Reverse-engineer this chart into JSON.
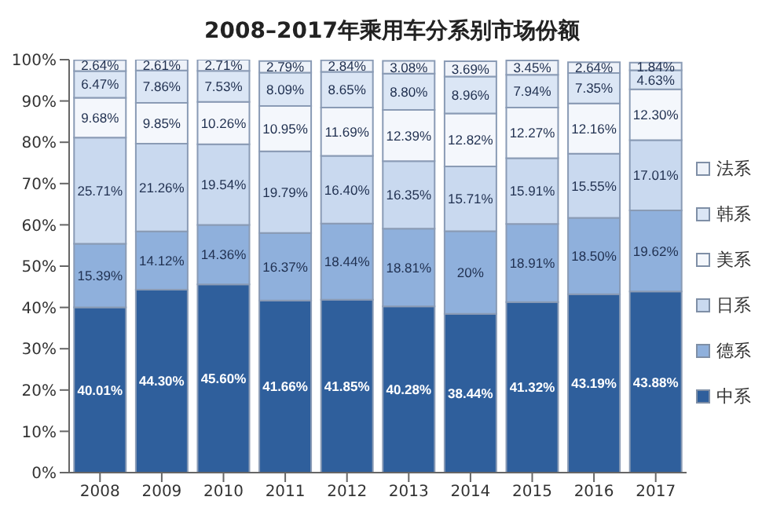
{
  "chart_data": {
    "type": "bar",
    "title": "2008–2017年乘用车分系别市场份额",
    "stacked": true,
    "categories": [
      "2008",
      "2009",
      "2010",
      "2011",
      "2012",
      "2013",
      "2014",
      "2015",
      "2016",
      "2017"
    ],
    "series": [
      {
        "name": "中系",
        "color": "#2f5f9c",
        "values": [
          40.01,
          44.3,
          45.6,
          41.66,
          41.85,
          40.28,
          38.44,
          41.32,
          43.19,
          43.88
        ],
        "value_labels": [
          "40.01%",
          "44.30%",
          "45.60%",
          "41.66%",
          "41.85%",
          "40.28%",
          "38.44%",
          "41.32%",
          "43.19%",
          "43.88%"
        ]
      },
      {
        "name": "德系",
        "color": "#8fb0dc",
        "values": [
          15.39,
          14.12,
          14.36,
          16.37,
          18.44,
          18.81,
          20,
          18.91,
          18.5,
          19.62
        ],
        "value_labels": [
          "15.39%",
          "14.12%",
          "14.36%",
          "16.37%",
          "18.44%",
          "18.81%",
          "20%",
          "18.91%",
          "18.50%",
          "19.62%"
        ]
      },
      {
        "name": "日系",
        "color": "#c9d9ef",
        "values": [
          25.71,
          21.26,
          19.54,
          19.79,
          16.4,
          16.35,
          15.71,
          15.91,
          15.55,
          17.01
        ],
        "value_labels": [
          "25.71%",
          "21.26%",
          "19.54%",
          "19.79%",
          "16.40%",
          "16.35%",
          "15.71%",
          "15.91%",
          "15.55%",
          "17.01%"
        ]
      },
      {
        "name": "美系",
        "color": "#f4f7fc",
        "values": [
          9.68,
          9.85,
          10.26,
          10.95,
          11.69,
          12.39,
          12.82,
          12.27,
          12.16,
          12.3
        ],
        "value_labels": [
          "9.68%",
          "9.85%",
          "10.26%",
          "10.95%",
          "11.69%",
          "12.39%",
          "12.82%",
          "12.27%",
          "12.16%",
          "12.30%"
        ]
      },
      {
        "name": "韩系",
        "color": "#dbe6f5",
        "values": [
          6.47,
          7.86,
          7.53,
          8.09,
          8.65,
          8.8,
          8.96,
          7.94,
          7.35,
          4.63
        ],
        "value_labels": [
          "6.47%",
          "7.86%",
          "7.53%",
          "8.09%",
          "8.65%",
          "8.80%",
          "8.96%",
          "7.94%",
          "7.35%",
          "4.63%"
        ]
      },
      {
        "name": "法系",
        "color": "#eef2f9",
        "values": [
          2.64,
          2.61,
          2.71,
          2.79,
          2.84,
          3.08,
          3.69,
          3.45,
          2.64,
          1.84
        ],
        "value_labels": [
          "2.64%",
          "2.61%",
          "2.71%",
          "2.79%",
          "2.84%",
          "3.08%",
          "3.69%",
          "3.45%",
          "2.64%",
          "1.84%"
        ]
      }
    ],
    "ylim": [
      0,
      100
    ],
    "yticks": [
      {
        "value": 0,
        "label": "0%"
      },
      {
        "value": 10,
        "label": "10%"
      },
      {
        "value": 20,
        "label": "20%"
      },
      {
        "value": 30,
        "label": "30%"
      },
      {
        "value": 40,
        "label": "40%"
      },
      {
        "value": 50,
        "label": "50%"
      },
      {
        "value": 60,
        "label": "60%"
      },
      {
        "value": 70,
        "label": "70%"
      },
      {
        "value": 80,
        "label": "80%"
      },
      {
        "value": 90,
        "label": "90%"
      },
      {
        "value": 100,
        "label": "100%"
      }
    ],
    "grid": false,
    "legend": "right"
  }
}
